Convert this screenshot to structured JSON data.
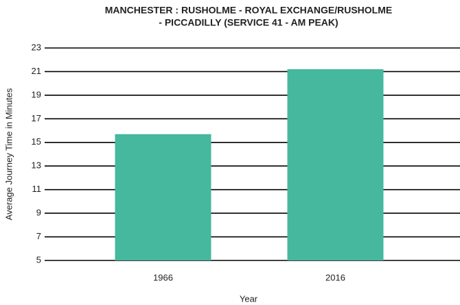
{
  "chart_data": {
    "type": "bar",
    "title": [
      "MANCHESTER : RUSHOLME - ROYAL EXCHANGE/RUSHOLME",
      "- PICCADILLY (SERVICE 41 - AM PEAK)"
    ],
    "x_label": "Year",
    "y_label": "Average Journey Time in Minutes",
    "categories": [
      "1966",
      "2016"
    ],
    "values": [
      15.7,
      21.2
    ],
    "color": "#45b89e",
    "ylim": [
      5,
      23
    ],
    "yticks": [
      5,
      7,
      9,
      11,
      13,
      15,
      17,
      19,
      21,
      23
    ],
    "grid": true
  }
}
